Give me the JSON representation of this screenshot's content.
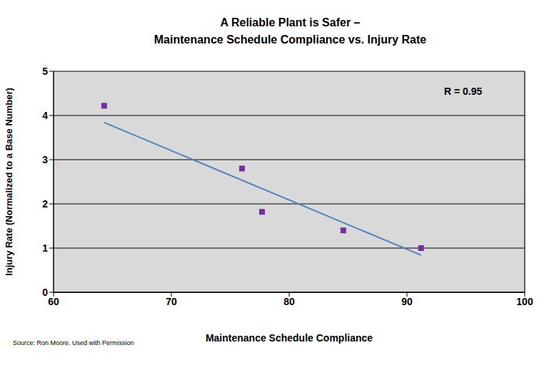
{
  "chart_data": {
    "type": "scatter",
    "title": "A Reliable Plant is Safer –\nMaintenance Schedule Compliance vs. Injury Rate",
    "x_label": "Maintenance Schedule Compliance",
    "y_label": "Injury Rate (Normalized to a Base Number)",
    "annotations": [
      "R = 0.95"
    ],
    "source": "Source: Ron Moore. Used with Permission",
    "series": [
      {
        "type": "scatter",
        "color": "#7030a0",
        "marker": "square",
        "x": [
          64.3,
          76.0,
          77.7,
          84.6,
          91.2
        ],
        "values": [
          4.22,
          2.8,
          1.82,
          1.4,
          1.0
        ]
      },
      {
        "type": "line",
        "color": "#4f81bd",
        "line_style": "solid",
        "x": [
          64.3,
          91.2
        ],
        "values": [
          3.84,
          0.84
        ]
      }
    ],
    "xlim": [
      60,
      100
    ],
    "xticks": [
      60,
      70,
      80,
      90,
      100
    ],
    "ylim": [
      0,
      5
    ],
    "yticks": [
      0,
      1,
      2,
      3,
      4,
      5
    ],
    "grid": true
  }
}
